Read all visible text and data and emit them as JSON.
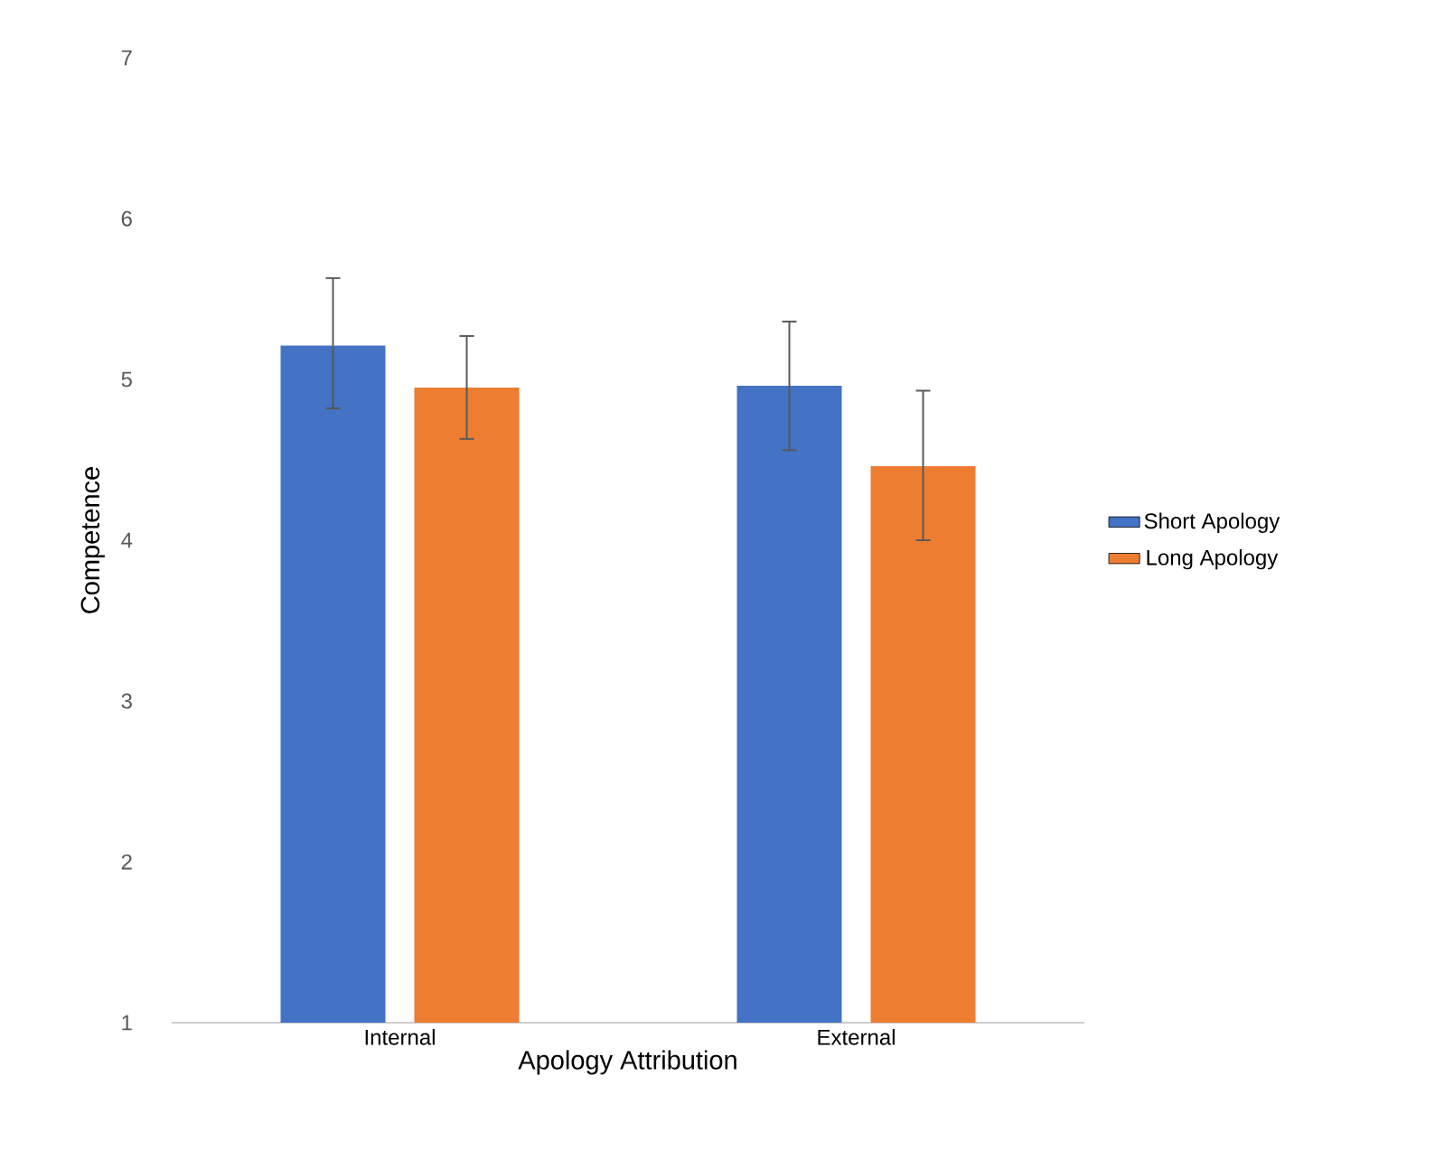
{
  "chart_data": {
    "type": "bar",
    "xlabel": "Apology Attribution",
    "ylabel": "Competence",
    "categories": [
      "Internal",
      "External"
    ],
    "series": [
      {
        "name": "Short Apology",
        "color": "#4472c4",
        "values": [
          5.21,
          4.96
        ],
        "errors": [
          [
            4.82,
            5.63
          ],
          [
            4.56,
            5.36
          ]
        ]
      },
      {
        "name": "Long Apology",
        "color": "#ed7d31",
        "values": [
          4.95,
          4.46
        ],
        "errors": [
          [
            4.63,
            5.27
          ],
          [
            4.0,
            4.93
          ]
        ]
      }
    ],
    "ylim": [
      1,
      7
    ],
    "yticks": [
      1,
      2,
      3,
      4,
      5,
      6,
      7
    ],
    "grid": false,
    "legend": "right"
  }
}
